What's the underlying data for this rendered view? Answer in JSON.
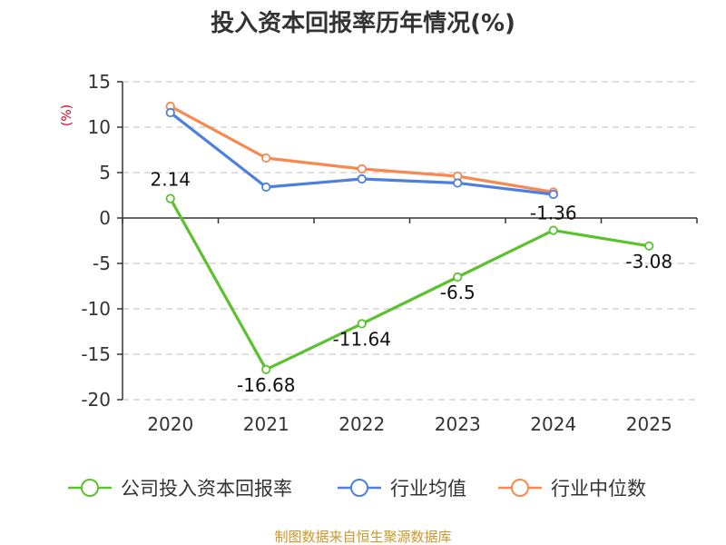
{
  "chart_data": {
    "type": "line",
    "title": "投入资本回报率历年情况(%)",
    "ylabel": "(%)",
    "xlabel": "",
    "categories": [
      "2020",
      "2021",
      "2022",
      "2023",
      "2024",
      "2025"
    ],
    "ylim": [
      -20,
      15
    ],
    "yticks": [
      "15",
      "10",
      "5",
      "0",
      "-5",
      "-10",
      "-15",
      "-20"
    ],
    "grid": true,
    "legend_position": "bottom",
    "series": [
      {
        "name": "公司投入资本回报率",
        "color": "#5cc12e",
        "values": [
          2.14,
          -16.68,
          -11.64,
          -6.5,
          -1.36,
          -3.08
        ],
        "labels": [
          "2.14",
          "-16.68",
          "-11.64",
          "-6.5",
          "-1.36",
          "-3.08"
        ]
      },
      {
        "name": "行业均值",
        "color": "#4c7fe0",
        "values": [
          11.6,
          3.4,
          4.3,
          3.85,
          2.6,
          null
        ]
      },
      {
        "name": "行业中位数",
        "color": "#f7884f",
        "values": [
          12.3,
          6.6,
          5.4,
          4.6,
          2.85,
          null
        ]
      }
    ]
  },
  "source": "制图数据来自恒生聚源数据库"
}
